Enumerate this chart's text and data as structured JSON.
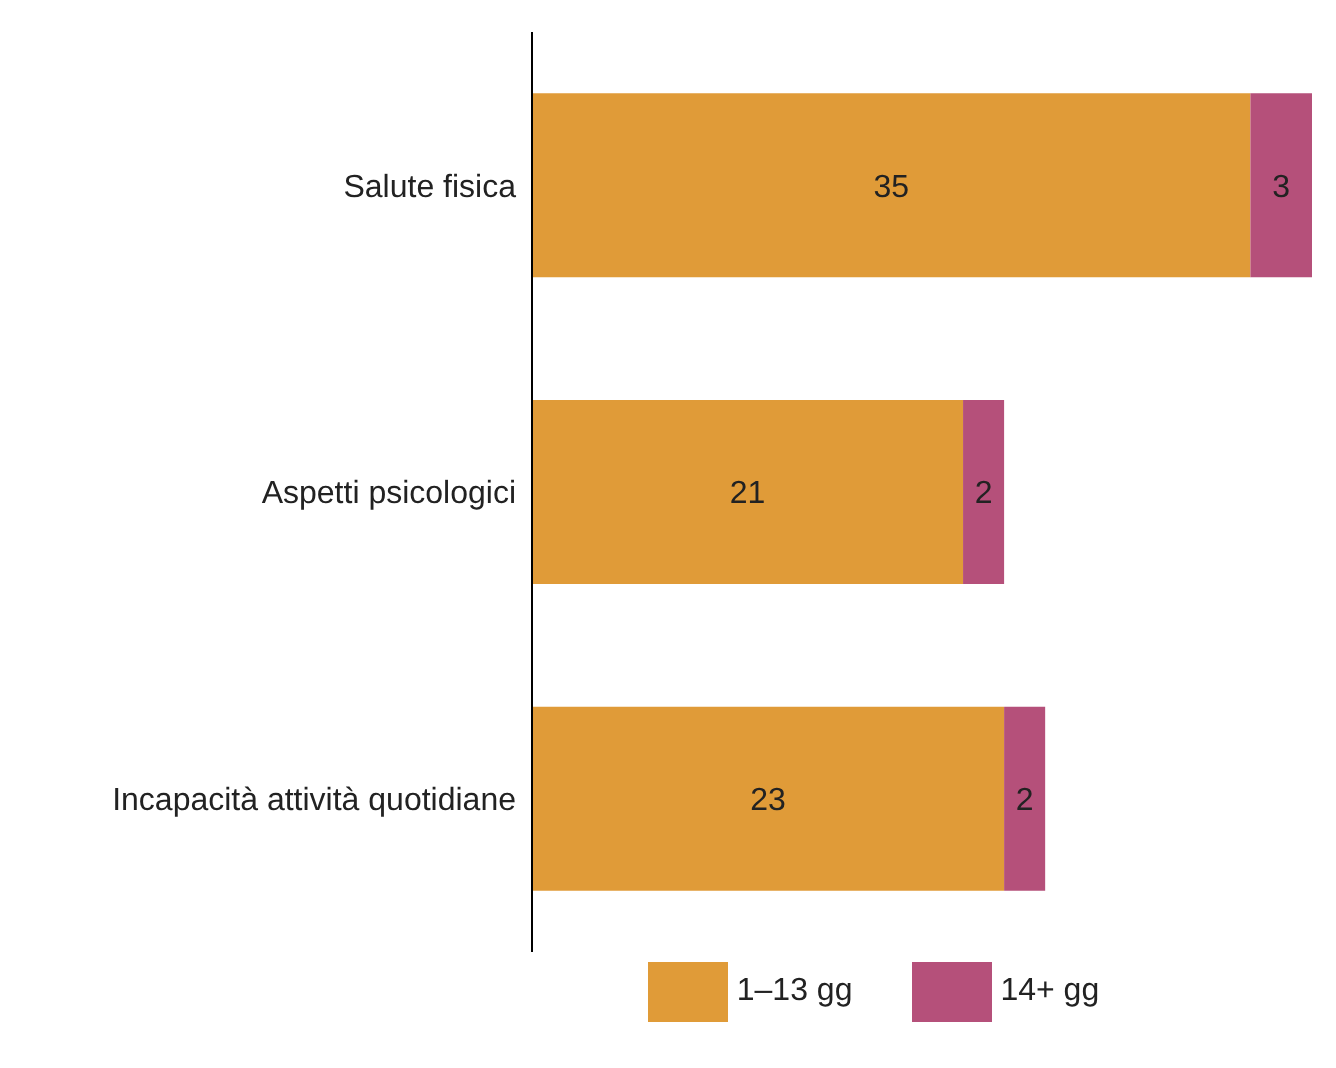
{
  "chart_data": {
    "type": "bar",
    "orientation": "horizontal",
    "stacked": true,
    "data_labels": true,
    "legend": "bottom",
    "grid": false,
    "categories": [
      "Salute fisica",
      "Aspetti psicologici",
      "Incapacità attività quotidiane"
    ],
    "series": [
      {
        "name": "1–13 gg",
        "color": "#e09b38",
        "values": [
          35,
          21,
          23
        ]
      },
      {
        "name": "14+ gg",
        "color": "#b5507a",
        "values": [
          3,
          2,
          2
        ]
      }
    ]
  }
}
